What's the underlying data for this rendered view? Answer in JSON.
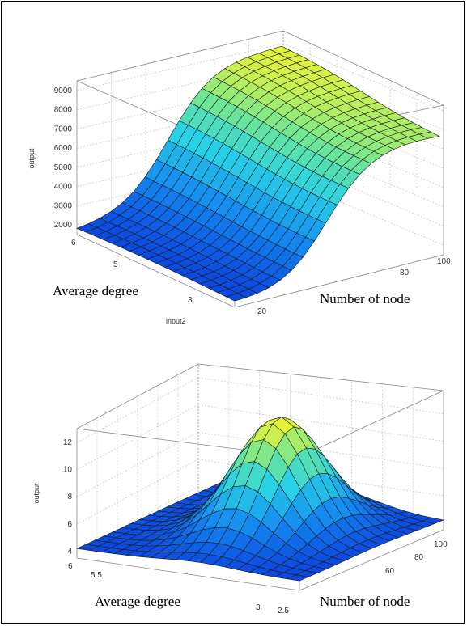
{
  "chart_data": [
    {
      "type": "surface",
      "title": "",
      "x_axis_label": "input2",
      "z_axis_label": "output",
      "x_axis_caption": "Average degree",
      "y_axis_caption": "Number of node",
      "z_ticks": [
        "2000",
        "3000",
        "4000",
        "5000",
        "6000",
        "7000",
        "8000",
        "9000"
      ],
      "x_ticks": [
        "6",
        "5",
        "3"
      ],
      "y_ticks": [
        "20",
        "80",
        "100"
      ],
      "zlim": [
        1500,
        9500
      ],
      "xlim": [
        2,
        6
      ],
      "ylim": [
        10,
        100
      ],
      "grid": true,
      "colormap": "jet",
      "surface_description": "output rises with Number of node, peaking near 9000 at high node count; low (~1500) for small node counts"
    },
    {
      "type": "surface",
      "title": "",
      "x_axis_label": "",
      "z_axis_label": "output",
      "x_axis_caption": "Average degree",
      "y_axis_caption": "Number of node",
      "z_ticks": [
        "4",
        "6",
        "8",
        "10",
        "12"
      ],
      "x_ticks": [
        "6",
        "5.5",
        "3",
        "2.5"
      ],
      "y_ticks": [
        "60",
        "80",
        "100"
      ],
      "zlim": [
        3.5,
        13
      ],
      "xlim": [
        2,
        6
      ],
      "ylim": [
        10,
        100
      ],
      "grid": true,
      "colormap": "jet",
      "surface_description": "bell-shaped surface peaking near 12.5 at mid average degree and mid node count"
    }
  ]
}
